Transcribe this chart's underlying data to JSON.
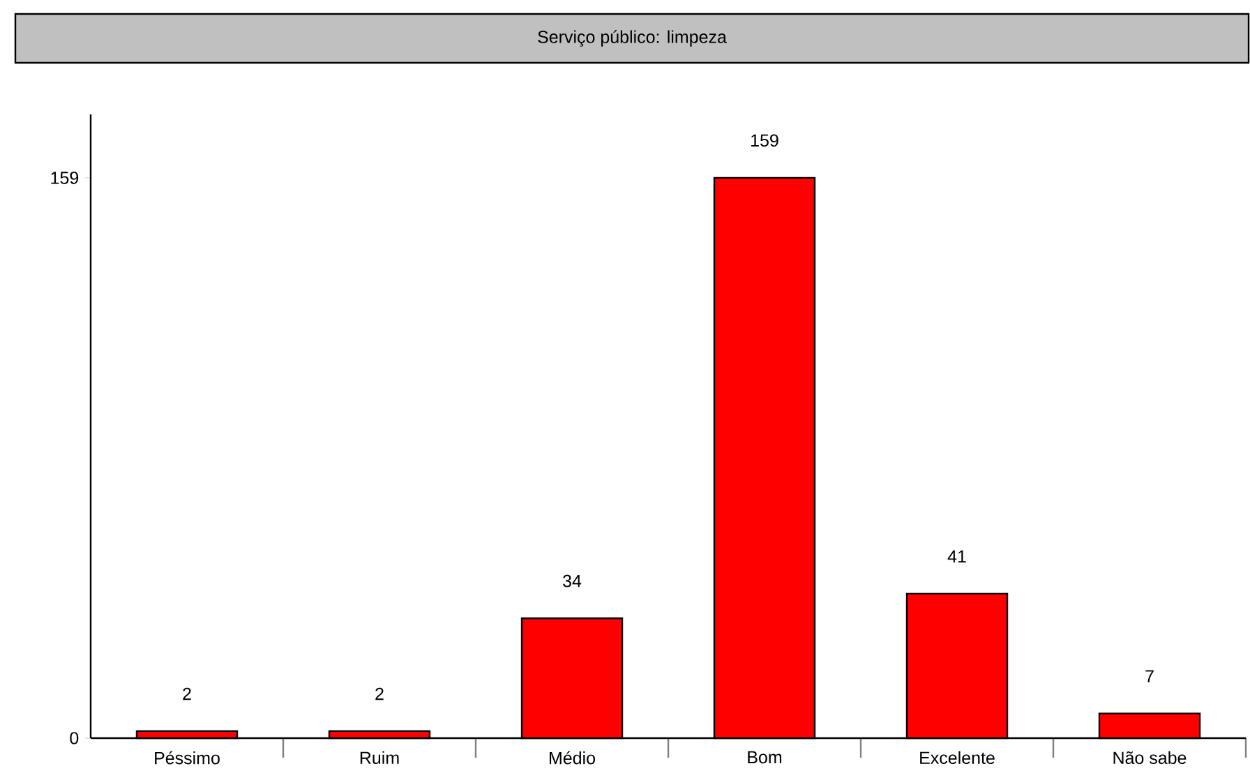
{
  "chart_data": {
    "type": "bar",
    "title": "Serviço público: limpeza",
    "categories": [
      "Péssimo",
      "Ruim",
      "Médio",
      "Bom",
      "Excelente",
      "Não sabe"
    ],
    "values": [
      2,
      2,
      34,
      159,
      41,
      7
    ],
    "color": "#ff0000",
    "ylim": [
      0,
      177
    ],
    "yticks": [
      0,
      159
    ],
    "data_labels": true
  }
}
